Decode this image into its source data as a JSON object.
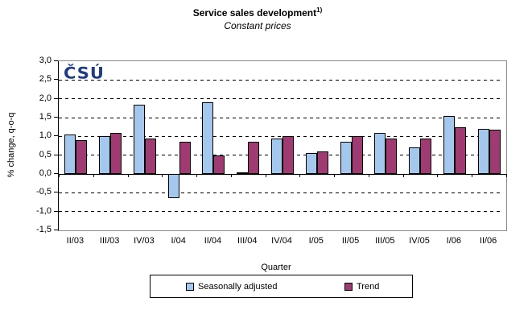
{
  "title": {
    "text": "Service sales development",
    "superscript": "1)",
    "subtitle": "Constant prices"
  },
  "logo": {
    "text": "ČSÚ",
    "color": "#203C82"
  },
  "chart_data": {
    "type": "bar",
    "title": "Service sales development 1)",
    "subtitle": "Constant prices",
    "xlabel": "Quarter",
    "ylabel": "% change, q-o-q",
    "ylim": [
      -1.5,
      3.0
    ],
    "ytick_step": 0.5,
    "ytick_labels": [
      "3,0",
      "2,5",
      "2,0",
      "1,5",
      "1,0",
      "0,5",
      "0,0",
      "-0,5",
      "-1,0",
      "-1,5"
    ],
    "grid": "horizontal-dashed",
    "legend_position": "bottom",
    "categories": [
      "II/03",
      "III/03",
      "IV/03",
      "I/04",
      "II/04",
      "III/04",
      "IV/04",
      "I/05",
      "II/05",
      "III/05",
      "IV/05",
      "I/06",
      "II/06"
    ],
    "series": [
      {
        "name": "Seasonally adjusted",
        "color": "#A4C7EE",
        "values": [
          1.05,
          1.0,
          1.85,
          -0.65,
          1.9,
          0.05,
          0.95,
          0.55,
          0.85,
          1.1,
          0.7,
          1.55,
          1.2
        ]
      },
      {
        "name": "Trend",
        "color": "#A03A72",
        "values": [
          0.9,
          1.1,
          0.95,
          0.85,
          0.5,
          0.85,
          1.0,
          0.6,
          1.0,
          0.95,
          0.95,
          1.25,
          1.18
        ]
      }
    ]
  }
}
